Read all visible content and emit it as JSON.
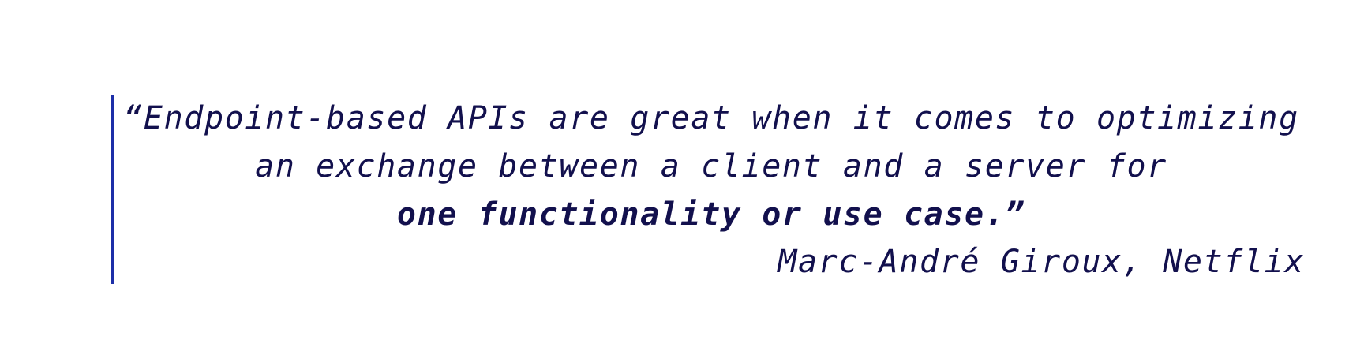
{
  "quote": {
    "line1": "“Endpoint-based APIs are great when it comes to optimizing",
    "line2": "an exchange between a client and a server for",
    "line3": "one functionality or use case.”"
  },
  "attribution": {
    "text": "Marc-André Giroux, Netflix"
  },
  "colors": {
    "text": "#12104d",
    "accent_bar": "#1d2fa8",
    "background": "#ffffff"
  }
}
